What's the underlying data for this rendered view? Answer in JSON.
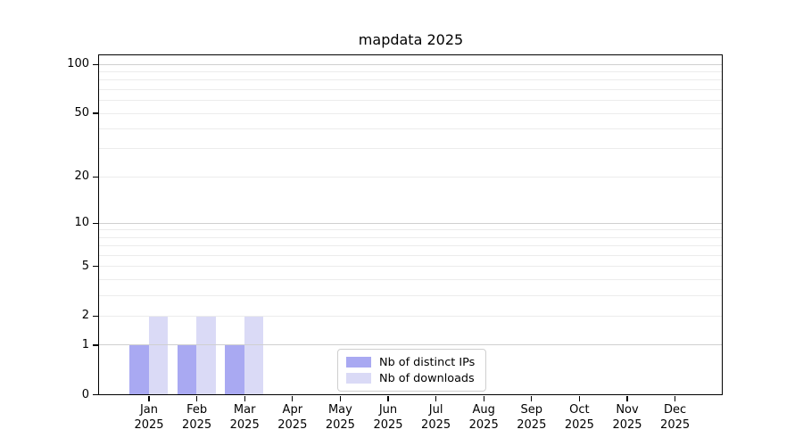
{
  "title": "mapdata 2025",
  "chart_data": {
    "type": "bar",
    "title": "mapdata 2025",
    "categories": [
      "Jan 2025",
      "Feb 2025",
      "Mar 2025",
      "Apr 2025",
      "May 2025",
      "Jun 2025",
      "Jul 2025",
      "Aug 2025",
      "Sep 2025",
      "Oct 2025",
      "Nov 2025",
      "Dec 2025"
    ],
    "x_tick_months": [
      "Jan",
      "Feb",
      "Mar",
      "Apr",
      "May",
      "Jun",
      "Jul",
      "Aug",
      "Sep",
      "Oct",
      "Nov",
      "Dec"
    ],
    "x_tick_year": "2025",
    "series": [
      {
        "name": "Nb of distinct IPs",
        "color": "#a9a9f2",
        "values": [
          1,
          1,
          1,
          0,
          0,
          0,
          0,
          0,
          0,
          0,
          0,
          0
        ]
      },
      {
        "name": "Nb of downloads",
        "color": "#dadaf6",
        "values": [
          2,
          2,
          2,
          0,
          0,
          0,
          0,
          0,
          0,
          0,
          0,
          0
        ]
      }
    ],
    "yscale": "log1p",
    "ylim": [
      0,
      113
    ],
    "ytick_values": [
      0,
      1,
      2,
      5,
      10,
      20,
      50,
      100
    ],
    "ytick_labels": [
      "0",
      "1",
      "2",
      "5",
      "10",
      "20",
      "50",
      "100"
    ],
    "minor_gridline_values": [
      2,
      3,
      4,
      5,
      6,
      7,
      8,
      9,
      20,
      30,
      40,
      50,
      60,
      70,
      80,
      90
    ],
    "emphasized_gridline_values": [
      1,
      10,
      100
    ],
    "grid": "horizontal",
    "legend_position": "inside-bottom-center",
    "colors": {
      "minor_gridline": "#ececec",
      "major_gridline": "#d0d0d0",
      "axis": "#000000",
      "legend_border": "#cfcfcf"
    }
  }
}
